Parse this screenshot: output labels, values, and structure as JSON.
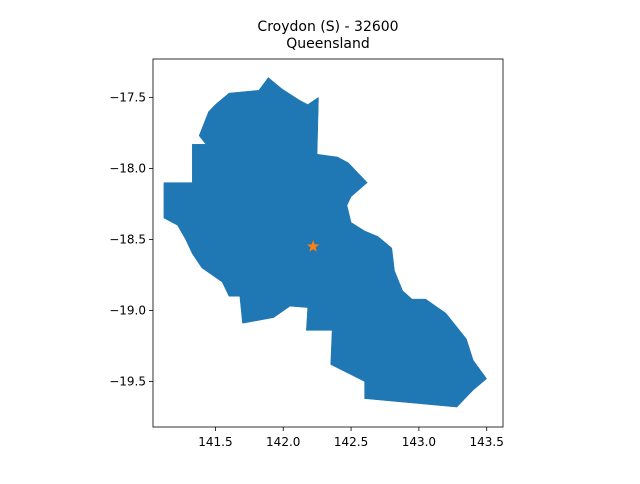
{
  "title": {
    "line1": "Croydon (S) - 32600",
    "line2": "Queensland"
  },
  "colors": {
    "region_fill": "#1f77b4",
    "marker": "#ff7f0e",
    "axes": "#000000"
  },
  "marker_icon": "star-icon",
  "chart_data": {
    "type": "map",
    "xlim": [
      141.04,
      143.62
    ],
    "ylim": [
      -19.82,
      -17.23
    ],
    "x_ticks": [
      {
        "value": 141.5,
        "label": "141.5"
      },
      {
        "value": 142.0,
        "label": "142.0"
      },
      {
        "value": 142.5,
        "label": "142.5"
      },
      {
        "value": 143.0,
        "label": "143.0"
      },
      {
        "value": 143.5,
        "label": "143.5"
      }
    ],
    "y_ticks": [
      {
        "value": -17.5,
        "label": "−17.5"
      },
      {
        "value": -18.0,
        "label": "−18.0"
      },
      {
        "value": -18.5,
        "label": "−18.5"
      },
      {
        "value": -19.0,
        "label": "−19.0"
      },
      {
        "value": -19.5,
        "label": "−19.5"
      }
    ],
    "grid": false,
    "marker_point": {
      "lon": 142.22,
      "lat": -18.55
    },
    "region_outline": [
      [
        141.89,
        -17.36
      ],
      [
        141.99,
        -17.44
      ],
      [
        142.12,
        -17.52
      ],
      [
        142.18,
        -17.55
      ],
      [
        142.26,
        -17.5
      ],
      [
        142.25,
        -17.9
      ],
      [
        142.4,
        -17.92
      ],
      [
        142.48,
        -17.96
      ],
      [
        142.62,
        -18.1
      ],
      [
        142.5,
        -18.2
      ],
      [
        142.47,
        -18.26
      ],
      [
        142.5,
        -18.38
      ],
      [
        142.6,
        -18.44
      ],
      [
        142.7,
        -18.48
      ],
      [
        142.8,
        -18.56
      ],
      [
        142.82,
        -18.72
      ],
      [
        142.88,
        -18.86
      ],
      [
        142.95,
        -18.92
      ],
      [
        143.05,
        -18.92
      ],
      [
        143.2,
        -19.02
      ],
      [
        143.35,
        -19.2
      ],
      [
        143.4,
        -19.35
      ],
      [
        143.5,
        -19.48
      ],
      [
        143.4,
        -19.56
      ],
      [
        143.28,
        -19.68
      ],
      [
        142.6,
        -19.62
      ],
      [
        142.6,
        -19.5
      ],
      [
        142.35,
        -19.38
      ],
      [
        142.36,
        -19.14
      ],
      [
        142.17,
        -19.14
      ],
      [
        142.18,
        -18.98
      ],
      [
        142.05,
        -18.97
      ],
      [
        141.93,
        -19.05
      ],
      [
        141.7,
        -19.09
      ],
      [
        141.68,
        -18.9
      ],
      [
        141.6,
        -18.9
      ],
      [
        141.55,
        -18.8
      ],
      [
        141.4,
        -18.7
      ],
      [
        141.33,
        -18.6
      ],
      [
        141.28,
        -18.5
      ],
      [
        141.22,
        -18.4
      ],
      [
        141.12,
        -18.35
      ],
      [
        141.12,
        -18.1
      ],
      [
        141.33,
        -18.1
      ],
      [
        141.33,
        -17.83
      ],
      [
        141.43,
        -17.83
      ],
      [
        141.38,
        -17.77
      ],
      [
        141.45,
        -17.6
      ],
      [
        141.5,
        -17.55
      ],
      [
        141.6,
        -17.47
      ],
      [
        141.82,
        -17.45
      ]
    ]
  }
}
